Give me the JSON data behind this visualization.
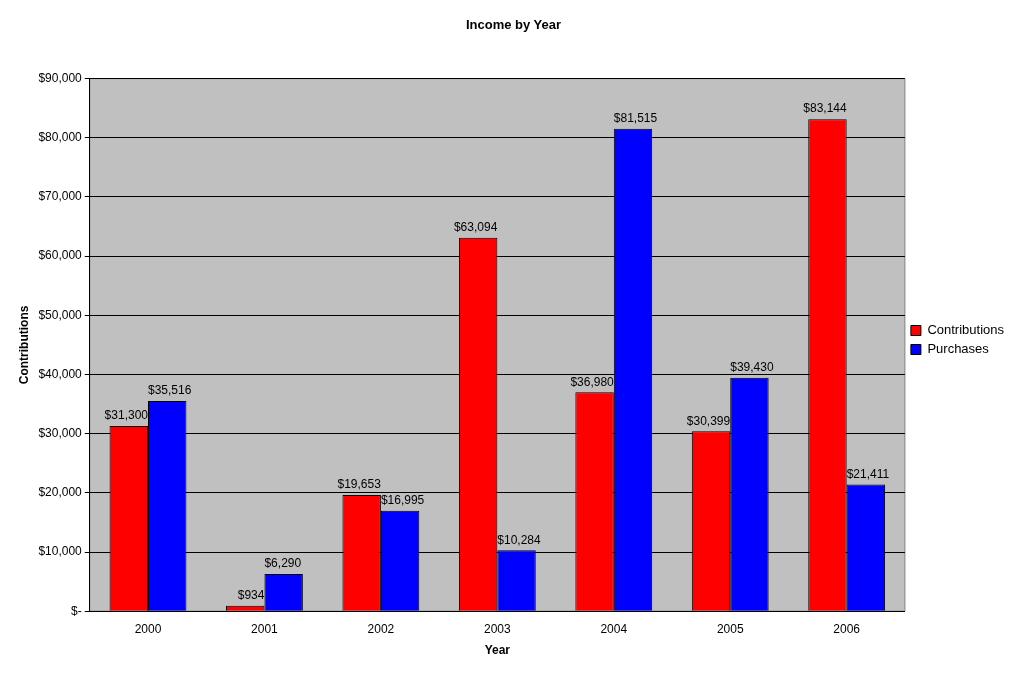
{
  "chart_data": {
    "type": "bar",
    "title": "Income by Year",
    "xlabel": "Year",
    "ylabel": "Contributions",
    "categories": [
      "2000",
      "2001",
      "2002",
      "2003",
      "2004",
      "2005",
      "2006"
    ],
    "series": [
      {
        "name": "Contributions",
        "color": "#ff0000",
        "values": [
          31300,
          934,
          19653,
          63094,
          36980,
          30399,
          83144
        ],
        "value_labels": [
          "$31,300",
          "$934",
          "$19,653",
          "$63,094",
          "$36,980",
          "$30,399",
          "$83,144"
        ]
      },
      {
        "name": "Purchases",
        "color": "#0000ff",
        "values": [
          35516,
          6290,
          16995,
          10284,
          81515,
          39430,
          21411
        ],
        "value_labels": [
          "$35,516",
          "$6,290",
          "$16,995",
          "$10,284",
          "$81,515",
          "$39,430",
          "$21,411"
        ]
      }
    ],
    "ylim": [
      0,
      90000
    ],
    "yticks": [
      {
        "value": 0,
        "label": "$-"
      },
      {
        "value": 10000,
        "label": "$10,000"
      },
      {
        "value": 20000,
        "label": "$20,000"
      },
      {
        "value": 30000,
        "label": "$30,000"
      },
      {
        "value": 40000,
        "label": "$40,000"
      },
      {
        "value": 50000,
        "label": "$50,000"
      },
      {
        "value": 60000,
        "label": "$60,000"
      },
      {
        "value": 70000,
        "label": "$70,000"
      },
      {
        "value": 80000,
        "label": "$80,000"
      },
      {
        "value": 90000,
        "label": "$90,000"
      }
    ],
    "grid": "y",
    "legend": "right"
  }
}
